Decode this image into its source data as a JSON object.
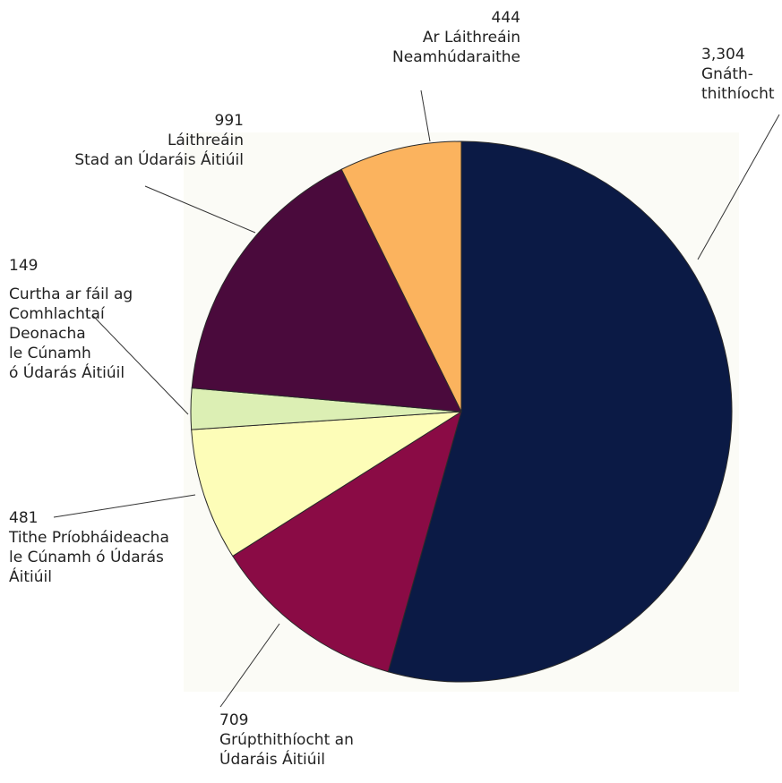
{
  "chart_data": {
    "type": "pie",
    "title": "",
    "slices": [
      {
        "value": 3304,
        "value_label": "3,304",
        "label_lines": [
          "Gnáth-",
          "thithíocht"
        ],
        "color": "#0b1a45"
      },
      {
        "value": 709,
        "value_label": "709",
        "label_lines": [
          "Grúpthithíocht an",
          "Údaráis Áitiúil"
        ],
        "color": "#8a0b45"
      },
      {
        "value": 481,
        "value_label": "481",
        "label_lines": [
          "Tithe Príobháideacha",
          "le Cúnamh ó Údarás",
          "Áitiúil"
        ],
        "color": "#fdfdb8"
      },
      {
        "value": 149,
        "value_label": "149",
        "label_lines": [
          "Curtha ar fáil ag",
          "Comhlachtaí",
          "Deonacha",
          "le Cúnamh",
          "ó Údarás Áitiúil"
        ],
        "color": "#dcefb4"
      },
      {
        "value": 991,
        "value_label": "991",
        "label_lines": [
          "Láithreáin",
          "Stad an Údaráis Áitiúil"
        ],
        "color": "#4a0a3c"
      },
      {
        "value": 444,
        "value_label": "444",
        "label_lines": [
          "Ar Láithreáin",
          "Neamhúdaraithe"
        ],
        "color": "#fbb35e"
      }
    ]
  }
}
